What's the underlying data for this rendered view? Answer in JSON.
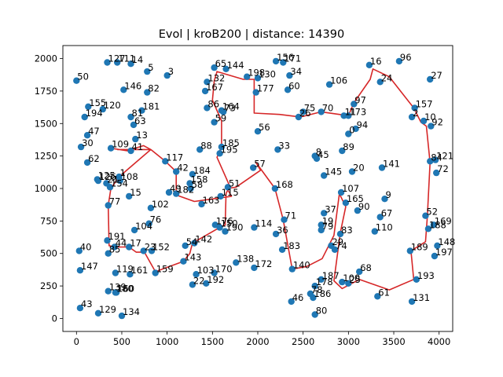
{
  "chart_data": {
    "type": "scatter",
    "title": "Evol | kroB200 | distance: 14390",
    "xlabel": "",
    "ylabel": "",
    "xlim": [
      -150,
      4150
    ],
    "ylim": [
      -100,
      2100
    ],
    "xticks": [
      0,
      500,
      1000,
      1500,
      2000,
      2500,
      3000,
      3500,
      4000
    ],
    "yticks": [
      0,
      250,
      500,
      750,
      1000,
      1250,
      1500,
      1750,
      2000
    ],
    "grid": false,
    "point_color": "#1f77b4",
    "route_color": "#d62728",
    "points": [
      {
        "id": "0",
        "x": 3000,
        "y": 1420
      },
      {
        "id": "1",
        "x": 470,
        "y": 1090
      },
      {
        "id": "2",
        "x": 3700,
        "y": 1550
      },
      {
        "id": "3",
        "x": 1000,
        "y": 1870
      },
      {
        "id": "5",
        "x": 780,
        "y": 1900
      },
      {
        "id": "8",
        "x": 2630,
        "y": 1250
      },
      {
        "id": "9",
        "x": 3400,
        "y": 920
      },
      {
        "id": "10",
        "x": 3830,
        "y": 1520
      },
      {
        "id": "11",
        "x": 2950,
        "y": 1560
      },
      {
        "id": "13",
        "x": 650,
        "y": 1380
      },
      {
        "id": "14",
        "x": 600,
        "y": 1960
      },
      {
        "id": "15",
        "x": 580,
        "y": 940
      },
      {
        "id": "16",
        "x": 3230,
        "y": 1950
      },
      {
        "id": "17",
        "x": 580,
        "y": 550
      },
      {
        "id": "19",
        "x": 2700,
        "y": 720
      },
      {
        "id": "20",
        "x": 3040,
        "y": 1130
      },
      {
        "id": "21",
        "x": 330,
        "y": 1040
      },
      {
        "id": "22",
        "x": 1280,
        "y": 260
      },
      {
        "id": "23",
        "x": 740,
        "y": 520
      },
      {
        "id": "24",
        "x": 3350,
        "y": 1820
      },
      {
        "id": "25",
        "x": 3000,
        "y": 270
      },
      {
        "id": "26",
        "x": 2450,
        "y": 1550
      },
      {
        "id": "27",
        "x": 3900,
        "y": 1840
      },
      {
        "id": "29",
        "x": 2810,
        "y": 560
      },
      {
        "id": "30",
        "x": 50,
        "y": 1320
      },
      {
        "id": "33",
        "x": 2220,
        "y": 1300
      },
      {
        "id": "34",
        "x": 2350,
        "y": 1870
      },
      {
        "id": "36",
        "x": 2200,
        "y": 650
      },
      {
        "id": "37",
        "x": 2730,
        "y": 810
      },
      {
        "id": "40",
        "x": 30,
        "y": 520
      },
      {
        "id": "41",
        "x": 600,
        "y": 1290
      },
      {
        "id": "42",
        "x": 1100,
        "y": 1130
      },
      {
        "id": "43",
        "x": 40,
        "y": 80
      },
      {
        "id": "44",
        "x": 420,
        "y": 550
      },
      {
        "id": "45",
        "x": 2650,
        "y": 1230
      },
      {
        "id": "46",
        "x": 2370,
        "y": 130
      },
      {
        "id": "47",
        "x": 120,
        "y": 1410
      },
      {
        "id": "49",
        "x": 1020,
        "y": 970
      },
      {
        "id": "50",
        "x": 0,
        "y": 1830
      },
      {
        "id": "51",
        "x": 1670,
        "y": 1010
      },
      {
        "id": "52",
        "x": 3850,
        "y": 790
      },
      {
        "id": "54",
        "x": 1200,
        "y": 560
      },
      {
        "id": "56",
        "x": 2000,
        "y": 1440
      },
      {
        "id": "57",
        "x": 1950,
        "y": 1160
      },
      {
        "id": "58",
        "x": 1260,
        "y": 1000
      },
      {
        "id": "59",
        "x": 1520,
        "y": 1510
      },
      {
        "id": "60",
        "x": 2330,
        "y": 1760
      },
      {
        "id": "61",
        "x": 3320,
        "y": 170
      },
      {
        "id": "62",
        "x": 120,
        "y": 1200
      },
      {
        "id": "63",
        "x": 630,
        "y": 1490
      },
      {
        "id": "65",
        "x": 1520,
        "y": 1930
      },
      {
        "id": "67",
        "x": 3350,
        "y": 780
      },
      {
        "id": "68",
        "x": 3120,
        "y": 360
      },
      {
        "id": "70",
        "x": 2700,
        "y": 1590
      },
      {
        "id": "71",
        "x": 2290,
        "y": 760
      },
      {
        "id": "72",
        "x": 3970,
        "y": 1120
      },
      {
        "id": "73",
        "x": 1620,
        "y": 1590
      },
      {
        "id": "74",
        "x": 2850,
        "y": 530
      },
      {
        "id": "75",
        "x": 2500,
        "y": 1590
      },
      {
        "id": "76",
        "x": 800,
        "y": 730
      },
      {
        "id": "77",
        "x": 350,
        "y": 870
      },
      {
        "id": "78",
        "x": 2580,
        "y": 190
      },
      {
        "id": "79",
        "x": 2700,
        "y": 680
      },
      {
        "id": "80",
        "x": 2630,
        "y": 30
      },
      {
        "id": "81",
        "x": 600,
        "y": 1550
      },
      {
        "id": "82",
        "x": 780,
        "y": 1740
      },
      {
        "id": "83",
        "x": 2910,
        "y": 650
      },
      {
        "id": "84",
        "x": 3900,
        "y": 1210
      },
      {
        "id": "85",
        "x": 350,
        "y": 500
      },
      {
        "id": "86",
        "x": 1440,
        "y": 1620
      },
      {
        "id": "88",
        "x": 1360,
        "y": 1300
      },
      {
        "id": "89",
        "x": 2930,
        "y": 1290
      },
      {
        "id": "90",
        "x": 3100,
        "y": 830
      },
      {
        "id": "92",
        "x": 3910,
        "y": 1480
      },
      {
        "id": "94",
        "x": 3080,
        "y": 1460
      },
      {
        "id": "96",
        "x": 3560,
        "y": 1980
      },
      {
        "id": "97",
        "x": 3060,
        "y": 1650
      },
      {
        "id": "100",
        "x": 2930,
        "y": 280
      },
      {
        "id": "102",
        "x": 820,
        "y": 850
      },
      {
        "id": "103",
        "x": 1320,
        "y": 340
      },
      {
        "id": "104",
        "x": 640,
        "y": 680
      },
      {
        "id": "106",
        "x": 2790,
        "y": 1800
      },
      {
        "id": "107",
        "x": 2920,
        "y": 970
      },
      {
        "id": "108",
        "x": 480,
        "y": 1060
      },
      {
        "id": "109",
        "x": 380,
        "y": 1310
      },
      {
        "id": "110",
        "x": 3290,
        "y": 670
      },
      {
        "id": "111",
        "x": 450,
        "y": 1970
      },
      {
        "id": "114",
        "x": 1960,
        "y": 700
      },
      {
        "id": "115",
        "x": 1590,
        "y": 940
      },
      {
        "id": "117",
        "x": 980,
        "y": 1210
      },
      {
        "id": "119",
        "x": 430,
        "y": 350
      },
      {
        "id": "120",
        "x": 290,
        "y": 1610
      },
      {
        "id": "121",
        "x": 3960,
        "y": 1220
      },
      {
        "id": "125",
        "x": 230,
        "y": 1070
      },
      {
        "id": "126",
        "x": 240,
        "y": 1060
      },
      {
        "id": "127",
        "x": 340,
        "y": 1970
      },
      {
        "id": "129",
        "x": 240,
        "y": 40
      },
      {
        "id": "130",
        "x": 2000,
        "y": 1850
      },
      {
        "id": "131",
        "x": 3700,
        "y": 130
      },
      {
        "id": "132",
        "x": 1440,
        "y": 1820
      },
      {
        "id": "134",
        "x": 500,
        "y": 20
      },
      {
        "id": "138",
        "x": 1760,
        "y": 430
      },
      {
        "id": "139",
        "x": 350,
        "y": 210
      },
      {
        "id": "140",
        "x": 2380,
        "y": 380
      },
      {
        "id": "141",
        "x": 3370,
        "y": 1160
      },
      {
        "id": "142",
        "x": 1300,
        "y": 580
      },
      {
        "id": "143",
        "x": 1180,
        "y": 440
      },
      {
        "id": "144",
        "x": 1650,
        "y": 1920
      },
      {
        "id": "145",
        "x": 2730,
        "y": 1100
      },
      {
        "id": "146",
        "x": 520,
        "y": 1760
      },
      {
        "id": "147",
        "x": 40,
        "y": 370
      },
      {
        "id": "148",
        "x": 3980,
        "y": 560
      },
      {
        "id": "150",
        "x": 1580,
        "y": 700
      },
      {
        "id": "152",
        "x": 830,
        "y": 520
      },
      {
        "id": "154",
        "x": 370,
        "y": 1010
      },
      {
        "id": "155",
        "x": 130,
        "y": 1630
      },
      {
        "id": "156",
        "x": 2200,
        "y": 1980
      },
      {
        "id": "157",
        "x": 3730,
        "y": 1620
      },
      {
        "id": "158",
        "x": 1250,
        "y": 1040
      },
      {
        "id": "159",
        "x": 870,
        "y": 350
      },
      {
        "id": "160",
        "x": 440,
        "y": 200
      },
      {
        "id": "161",
        "x": 590,
        "y": 340
      },
      {
        "id": "163",
        "x": 1380,
        "y": 880
      },
      {
        "id": "164",
        "x": 1600,
        "y": 1600
      },
      {
        "id": "165",
        "x": 2970,
        "y": 890
      },
      {
        "id": "167",
        "x": 1420,
        "y": 1750
      },
      {
        "id": "168",
        "x": 2190,
        "y": 1000
      },
      {
        "id": "169",
        "x": 3940,
        "y": 720
      },
      {
        "id": "170",
        "x": 1520,
        "y": 350
      },
      {
        "id": "171",
        "x": 2280,
        "y": 1970
      },
      {
        "id": "172",
        "x": 1960,
        "y": 390
      },
      {
        "id": "173",
        "x": 3000,
        "y": 1560
      },
      {
        "id": "176",
        "x": 1530,
        "y": 720
      },
      {
        "id": "177",
        "x": 1980,
        "y": 1740
      },
      {
        "id": "178",
        "x": 2630,
        "y": 250
      },
      {
        "id": "180",
        "x": 430,
        "y": 200
      },
      {
        "id": "181",
        "x": 720,
        "y": 1600
      },
      {
        "id": "182",
        "x": 1100,
        "y": 960
      },
      {
        "id": "183",
        "x": 2270,
        "y": 530
      },
      {
        "id": "184",
        "x": 1280,
        "y": 1110
      },
      {
        "id": "185",
        "x": 1600,
        "y": 1320
      },
      {
        "id": "186",
        "x": 2610,
        "y": 160
      },
      {
        "id": "187",
        "x": 2700,
        "y": 300
      },
      {
        "id": "188",
        "x": 3880,
        "y": 690
      },
      {
        "id": "189",
        "x": 3680,
        "y": 520
      },
      {
        "id": "190",
        "x": 1640,
        "y": 670
      },
      {
        "id": "191",
        "x": 340,
        "y": 600
      },
      {
        "id": "192",
        "x": 1430,
        "y": 270
      },
      {
        "id": "193",
        "x": 3750,
        "y": 300
      },
      {
        "id": "194",
        "x": 90,
        "y": 1550
      },
      {
        "id": "195",
        "x": 1580,
        "y": 1270
      },
      {
        "id": "197",
        "x": 3950,
        "y": 480
      },
      {
        "id": "198",
        "x": 1880,
        "y": 1860
      }
    ],
    "route": [
      [
        380,
        1310
      ],
      [
        560,
        1290
      ],
      [
        740,
        1330
      ],
      [
        820,
        1300
      ],
      [
        470,
        1090
      ],
      [
        380,
        1000
      ],
      [
        350,
        870
      ],
      [
        360,
        560
      ],
      [
        420,
        550
      ],
      [
        580,
        550
      ],
      [
        660,
        510
      ],
      [
        750,
        510
      ],
      [
        870,
        360
      ],
      [
        1180,
        440
      ],
      [
        1250,
        500
      ],
      [
        1280,
        580
      ],
      [
        1580,
        700
      ],
      [
        1640,
        720
      ],
      [
        1650,
        960
      ],
      [
        1690,
        1020
      ],
      [
        1550,
        1240
      ],
      [
        1600,
        1320
      ],
      [
        1600,
        1520
      ],
      [
        1500,
        1680
      ],
      [
        1520,
        1830
      ],
      [
        1550,
        1900
      ],
      [
        1840,
        1840
      ],
      [
        1960,
        1840
      ],
      [
        1960,
        1580
      ],
      [
        2240,
        1570
      ],
      [
        2470,
        1550
      ],
      [
        2700,
        1590
      ],
      [
        3000,
        1560
      ],
      [
        3060,
        1660
      ],
      [
        3240,
        1840
      ],
      [
        3270,
        1920
      ],
      [
        3450,
        1860
      ],
      [
        3720,
        1620
      ],
      [
        3800,
        1510
      ],
      [
        3860,
        1480
      ],
      [
        3900,
        1200
      ],
      [
        3870,
        780
      ],
      [
        3850,
        590
      ],
      [
        3690,
        520
      ],
      [
        3720,
        300
      ],
      [
        3450,
        220
      ],
      [
        3120,
        300
      ],
      [
        2930,
        230
      ],
      [
        2840,
        290
      ],
      [
        2910,
        660
      ],
      [
        2970,
        860
      ],
      [
        2900,
        960
      ],
      [
        2840,
        640
      ],
      [
        2710,
        460
      ],
      [
        2540,
        400
      ],
      [
        2380,
        380
      ],
      [
        2280,
        760
      ],
      [
        2190,
        1000
      ],
      [
        1980,
        1200
      ],
      [
        2030,
        1140
      ],
      [
        1760,
        1010
      ],
      [
        1660,
        1000
      ],
      [
        1710,
        940
      ],
      [
        1300,
        900
      ],
      [
        1100,
        950
      ],
      [
        1100,
        1130
      ],
      [
        980,
        1210
      ],
      [
        820,
        1300
      ],
      [
        450,
        1300
      ]
    ]
  }
}
